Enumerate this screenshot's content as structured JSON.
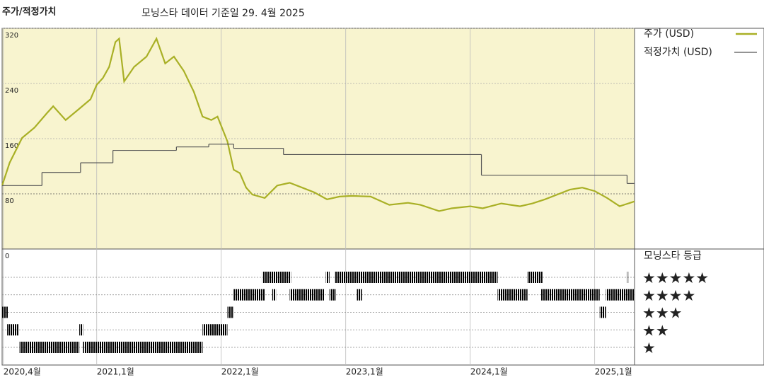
{
  "chart_data": {
    "type": "line",
    "title": "주가/적정가치",
    "subtitle": "모닝스타 데이터 기준일 29. 4월 2025",
    "xlim": [
      2020.24,
      2025.32
    ],
    "xticks": [
      {
        "value": 2020.25,
        "label": "2020,4월"
      },
      {
        "value": 2021,
        "label": "2021,1월"
      },
      {
        "value": 2022,
        "label": "2022,1월"
      },
      {
        "value": 2023,
        "label": "2023,1월"
      },
      {
        "value": 2024,
        "label": "2024,1월"
      },
      {
        "value": 2025,
        "label": "2025,1월"
      }
    ],
    "ylim": [
      0,
      320
    ],
    "yticks": [
      0,
      80,
      160,
      240,
      320
    ],
    "series": [
      {
        "name": "주가 (USD)",
        "color": "#a9b026",
        "x": [
          2020.24,
          2020.3,
          2020.4,
          2020.5,
          2020.6,
          2020.65,
          2020.75,
          2020.85,
          2020.95,
          2021.0,
          2021.05,
          2021.1,
          2021.15,
          2021.18,
          2021.22,
          2021.3,
          2021.4,
          2021.48,
          2021.55,
          2021.62,
          2021.7,
          2021.78,
          2021.85,
          2021.92,
          2021.97,
          2022.05,
          2022.1,
          2022.15,
          2022.2,
          2022.25,
          2022.35,
          2022.45,
          2022.55,
          2022.65,
          2022.75,
          2022.85,
          2022.95,
          2023.05,
          2023.2,
          2023.35,
          2023.5,
          2023.6,
          2023.75,
          2023.85,
          2024.0,
          2024.1,
          2024.25,
          2024.4,
          2024.5,
          2024.6,
          2024.7,
          2024.8,
          2024.9,
          2025.0,
          2025.1,
          2025.2,
          2025.32
        ],
        "values": [
          92,
          125,
          161,
          176,
          197,
          207,
          187,
          202,
          217,
          238,
          248,
          264,
          300,
          305,
          243,
          264,
          279,
          305,
          269,
          279,
          258,
          228,
          192,
          187,
          192,
          156,
          115,
          110,
          89,
          79,
          74,
          92,
          96,
          89,
          82,
          72,
          76,
          77,
          76,
          64,
          67,
          64,
          55,
          59,
          62,
          59,
          66,
          62,
          66,
          72,
          79,
          86,
          89,
          84,
          74,
          62,
          69
        ]
      },
      {
        "name": "적정가치 (USD)",
        "color": "#555555",
        "step": "after",
        "x": [
          2020.24,
          2020.56,
          2020.87,
          2021.13,
          2021.64,
          2021.9,
          2022.1,
          2022.5,
          2024.09,
          2025.26
        ],
        "values": [
          92,
          111,
          125,
          143,
          148,
          152,
          146,
          137,
          107,
          95
        ]
      }
    ],
    "rating": {
      "title": "모닝스타 등급",
      "levels": [
        {
          "value": 5,
          "label": "★★★★★",
          "color": "#2f7d62",
          "periods": [
            [
              2022.33,
              2022.56
            ],
            [
              2022.84,
              2022.87
            ],
            [
              2022.91,
              2024.22
            ],
            [
              2024.46,
              2024.58
            ],
            [
              2025.26,
              2025.27
            ]
          ]
        },
        {
          "value": 4,
          "label": "★★★★",
          "color": "#333333",
          "periods": [
            [
              2022.1,
              2022.35
            ],
            [
              2022.41,
              2022.44
            ],
            [
              2022.55,
              2022.83
            ],
            [
              2022.87,
              2022.92
            ],
            [
              2023.09,
              2023.13
            ],
            [
              2024.22,
              2024.46
            ],
            [
              2024.57,
              2025.04
            ],
            [
              2025.09,
              2025.32
            ]
          ]
        },
        {
          "value": 3,
          "label": "★★★",
          "color": "#333333",
          "periods": [
            [
              2020.24,
              2020.29
            ],
            [
              2022.05,
              2022.1
            ],
            [
              2025.04,
              2025.09
            ]
          ]
        },
        {
          "value": 2,
          "label": "★★",
          "color": "#333333",
          "periods": [
            [
              2020.28,
              2020.37
            ],
            [
              2020.86,
              2020.89
            ],
            [
              2021.85,
              2022.05
            ]
          ]
        },
        {
          "value": 1,
          "label": "★",
          "color": "#333333",
          "periods": [
            [
              2020.38,
              2020.86
            ],
            [
              2020.89,
              2021.85
            ]
          ]
        }
      ]
    }
  }
}
